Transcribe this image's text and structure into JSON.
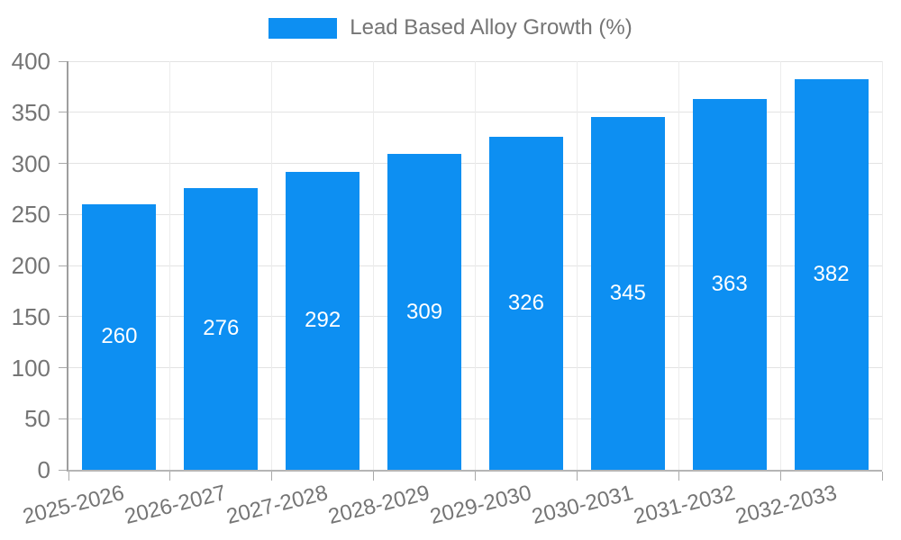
{
  "chart_data": {
    "type": "bar",
    "title": "",
    "legend": "Lead Based Alloy Growth (%)",
    "legend_position": "top-center",
    "categories": [
      "2025-2026",
      "2026-2027",
      "2027-2028",
      "2028-2029",
      "2029-2030",
      "2030-2031",
      "2031-2032",
      "2032-2033"
    ],
    "series": [
      {
        "name": "Lead Based Alloy Growth (%)",
        "values": [
          260,
          276,
          292,
          309,
          326,
          345,
          363,
          382
        ]
      }
    ],
    "value_labels_shown": true,
    "xlabel": "",
    "ylabel": "",
    "ylim": [
      0,
      400
    ],
    "yticks": [
      0,
      50,
      100,
      150,
      200,
      250,
      300,
      350,
      400
    ],
    "grid": true,
    "colors": {
      "bar": "#0d8ff2",
      "value_label": "#ffffff",
      "axis_text": "#757575",
      "legend_text": "#757575"
    }
  }
}
